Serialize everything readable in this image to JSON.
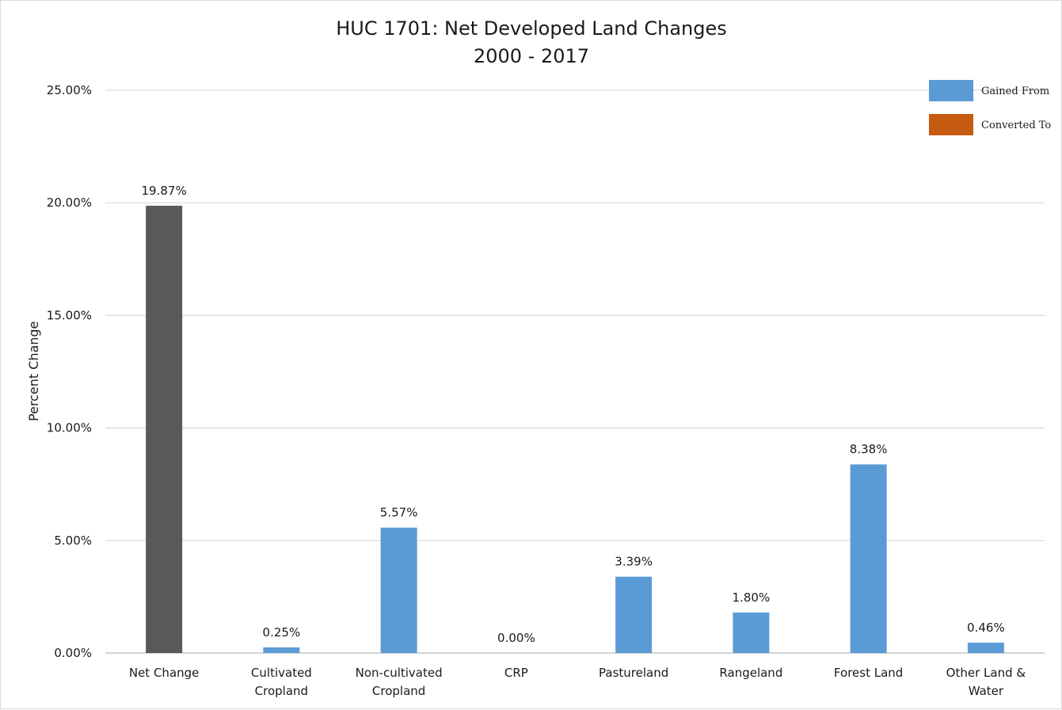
{
  "chart_data": {
    "type": "bar",
    "title": "HUC 1701: Net Developed Land Changes",
    "subtitle": "2000 - 2017",
    "ylabel": "Percent Change",
    "xlabel": "",
    "ylim": [
      0,
      25
    ],
    "yticks": [
      "0.00%",
      "5.00%",
      "10.00%",
      "15.00%",
      "20.00%",
      "25.00%"
    ],
    "grid": true,
    "legend_position": "top-right",
    "categories": [
      [
        "Net Change"
      ],
      [
        "Cultivated",
        "Cropland"
      ],
      [
        "Non-cultivated",
        "Cropland"
      ],
      [
        "CRP"
      ],
      [
        "Pastureland"
      ],
      [
        "Rangeland"
      ],
      [
        "Forest Land"
      ],
      [
        "Other Land &",
        "Water"
      ]
    ],
    "values": [
      19.87,
      0.25,
      5.57,
      0.0,
      3.39,
      1.8,
      8.38,
      0.46
    ],
    "data_labels": [
      "19.87%",
      "0.25%",
      "5.57%",
      "0.00%",
      "3.39%",
      "1.80%",
      "8.38%",
      "0.46%"
    ],
    "bar_colors": [
      "#595959",
      "#5b9bd5",
      "#5b9bd5",
      "#5b9bd5",
      "#5b9bd5",
      "#5b9bd5",
      "#5b9bd5",
      "#5b9bd5"
    ],
    "series": [
      {
        "name": "Gained From",
        "color": "#5b9bd5"
      },
      {
        "name": "Converted To",
        "color": "#c55a11"
      }
    ]
  }
}
